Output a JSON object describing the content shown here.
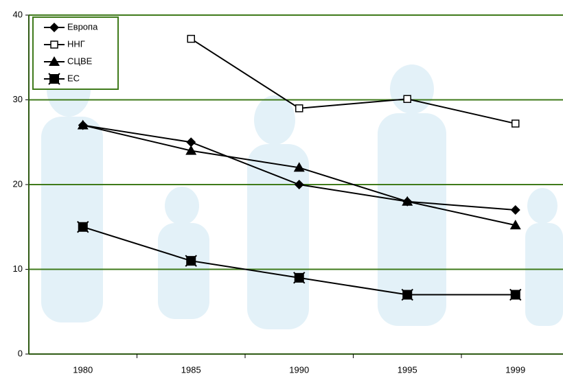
{
  "chart_data": {
    "type": "line",
    "categories": [
      "1980",
      "1985",
      "1990",
      "1995",
      "1999"
    ],
    "series": [
      {
        "name": "Европа",
        "color": "#000000",
        "marker": "diamond",
        "values": [
          27,
          25,
          20,
          18,
          17
        ]
      },
      {
        "name": "ННГ",
        "color": "#000000",
        "marker": "hollow-square",
        "values": [
          null,
          37.2,
          29,
          30.1,
          27.2
        ]
      },
      {
        "name": "СЦВЕ",
        "color": "#000000",
        "marker": "triangle",
        "values": [
          27,
          24,
          22,
          18,
          15.2
        ]
      },
      {
        "name": "ЕС",
        "color": "#000000",
        "marker": "square-x",
        "values": [
          15,
          11,
          9,
          7,
          7
        ]
      }
    ],
    "ylim": [
      0,
      40
    ],
    "yticks": [
      0,
      10,
      20,
      30,
      40
    ],
    "grid": true,
    "grid_color": "#3f7a1a",
    "legend": "top-left"
  }
}
